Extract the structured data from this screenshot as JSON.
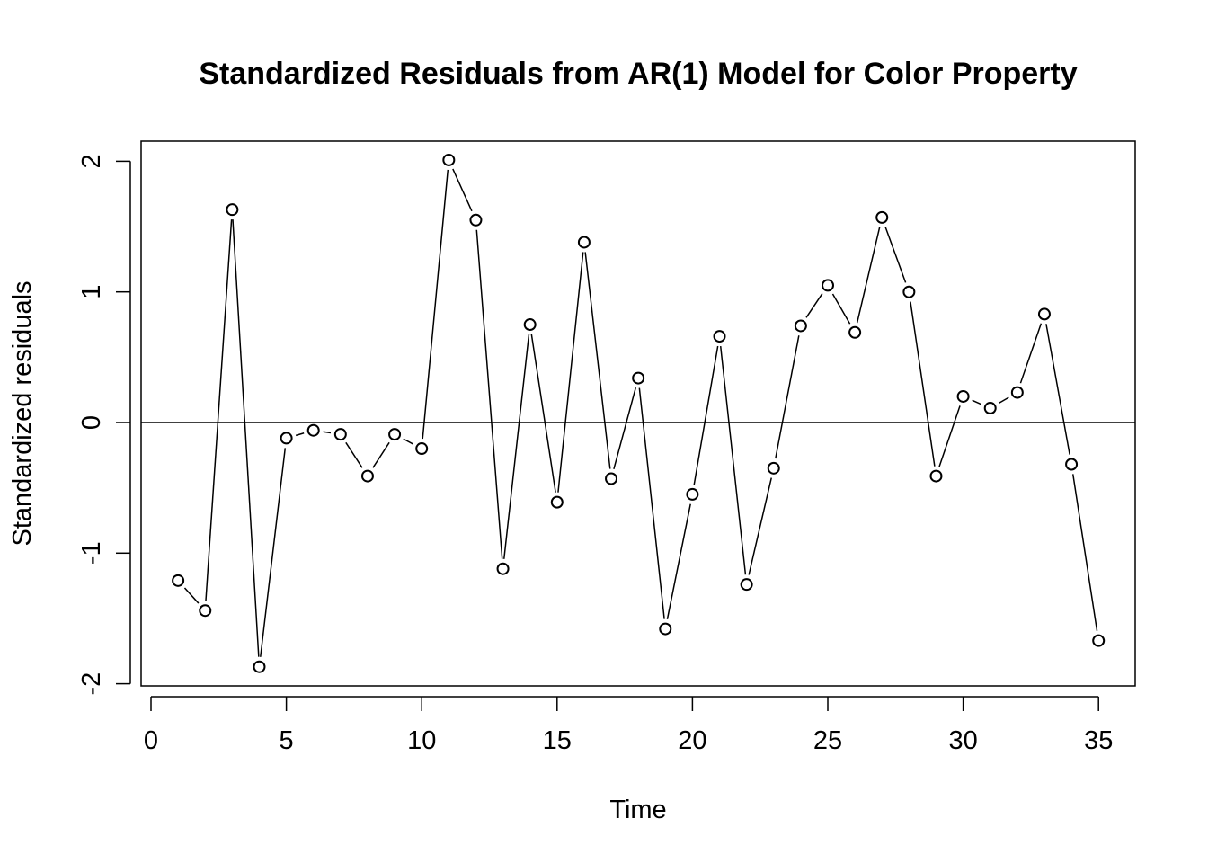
{
  "chart_data": {
    "type": "line",
    "title": "Standardized Residuals from AR(1) Model for Color Property",
    "xlabel": "Time",
    "ylabel": "Standardized residuals",
    "xlim": [
      0,
      35
    ],
    "ylim": [
      -2,
      2
    ],
    "x_ticks": [
      0,
      5,
      10,
      15,
      20,
      25,
      30,
      35
    ],
    "y_ticks": [
      -2,
      -1,
      0,
      1,
      2
    ],
    "reference_line": 0,
    "grid": false,
    "legend": "none",
    "marker": "open-circle",
    "line_color": "#000000",
    "series": [
      {
        "x": [
          1,
          2,
          3,
          4,
          5,
          6,
          7,
          8,
          9,
          10,
          11,
          12,
          13,
          14,
          15,
          16,
          17,
          18,
          19,
          20,
          21,
          22,
          23,
          24,
          25,
          26,
          27,
          28,
          29,
          30,
          31,
          32,
          33,
          34,
          35
        ],
        "values": [
          -1.21,
          -1.44,
          1.63,
          -1.87,
          -0.12,
          -0.06,
          -0.09,
          -0.41,
          -0.09,
          -0.2,
          2.01,
          1.55,
          -1.12,
          0.75,
          -0.61,
          1.38,
          -0.43,
          0.34,
          -1.58,
          -0.55,
          0.66,
          -1.24,
          -0.35,
          0.74,
          1.05,
          0.69,
          1.57,
          1.0,
          -0.41,
          0.2,
          0.11,
          0.23,
          0.83,
          -0.32,
          -1.67
        ]
      }
    ]
  }
}
